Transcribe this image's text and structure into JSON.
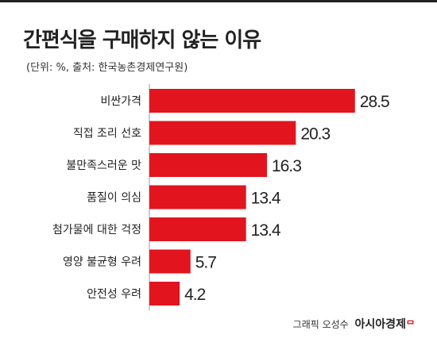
{
  "title": "간편식을 구매하지 않는 이유",
  "subtitle": "(단위: %, 출처: 한국농촌경제연구원)",
  "credit": {
    "prefix": "그래픽 오성수",
    "logo": "아시아경제",
    "logo_mark": "ᄆ"
  },
  "colors": {
    "bar": "#e2141e",
    "text": "#222222"
  },
  "chart_data": {
    "type": "bar",
    "orientation": "horizontal",
    "title": "간편식을 구매하지 않는 이유",
    "subtitle": "(단위: %, 출처: 한국농촌경제연구원)",
    "categories": [
      "비싼가격",
      "직접 조리 선호",
      "불만족스러운 맛",
      "품질이 의심",
      "첨가물에 대한 걱정",
      "영양 불균형 우려",
      "안전성 우려"
    ],
    "values": [
      28.5,
      20.3,
      16.3,
      13.4,
      13.4,
      5.7,
      4.2
    ],
    "xlim": [
      0,
      30
    ],
    "grid": false,
    "legend": "none"
  }
}
